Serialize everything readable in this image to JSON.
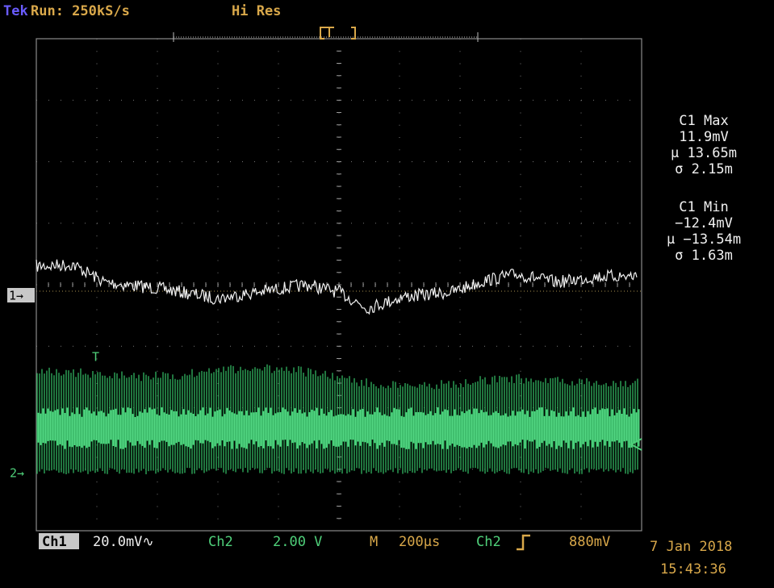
{
  "header": {
    "brand": "Tek",
    "status": "Run: 250kS/s",
    "mode": "Hi Res"
  },
  "measurements": [
    {
      "label": "C1 Max",
      "value": "11.9mV",
      "mean": "μ 13.65m",
      "std": "σ 2.15m"
    },
    {
      "label": "C1 Min",
      "value": "−12.4mV",
      "mean": "μ −13.54m",
      "std": "σ 1.63m"
    }
  ],
  "markers": {
    "ch1": "1→",
    "ch2": "2→",
    "trigger": "T"
  },
  "footer": {
    "ch1": "Ch1",
    "ch1_scale": "20.0mV∿",
    "ch2": "Ch2",
    "ch2_scale": "2.00 V",
    "timebase_label": "M",
    "timebase": "200μs",
    "trigger_source": "Ch2",
    "trigger_level": "880mV",
    "date": "7 Jan 2018",
    "time": "15:43:36"
  }
}
